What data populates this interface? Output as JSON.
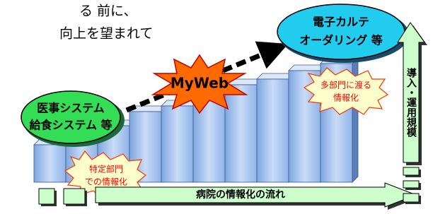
{
  "intro": {
    "lines": [
      "る 前に、",
      "向上を望まれて"
    ]
  },
  "left_bubble": {
    "lines": [
      "医事システム",
      "給食システム 等"
    ]
  },
  "right_bubble": {
    "lines": [
      "電子カルテ",
      "オーダリング 等"
    ]
  },
  "starburst": {
    "label": "MyWeb"
  },
  "left_callout": {
    "lines": [
      "特定部門",
      "での情報化"
    ]
  },
  "right_callout": {
    "lines": [
      "多部門に渡る",
      "情報化"
    ]
  },
  "flow_arrow": {
    "label": "病院の情報化の流れ"
  },
  "scale_arrow": {
    "label": "導入・運用規模"
  }
}
